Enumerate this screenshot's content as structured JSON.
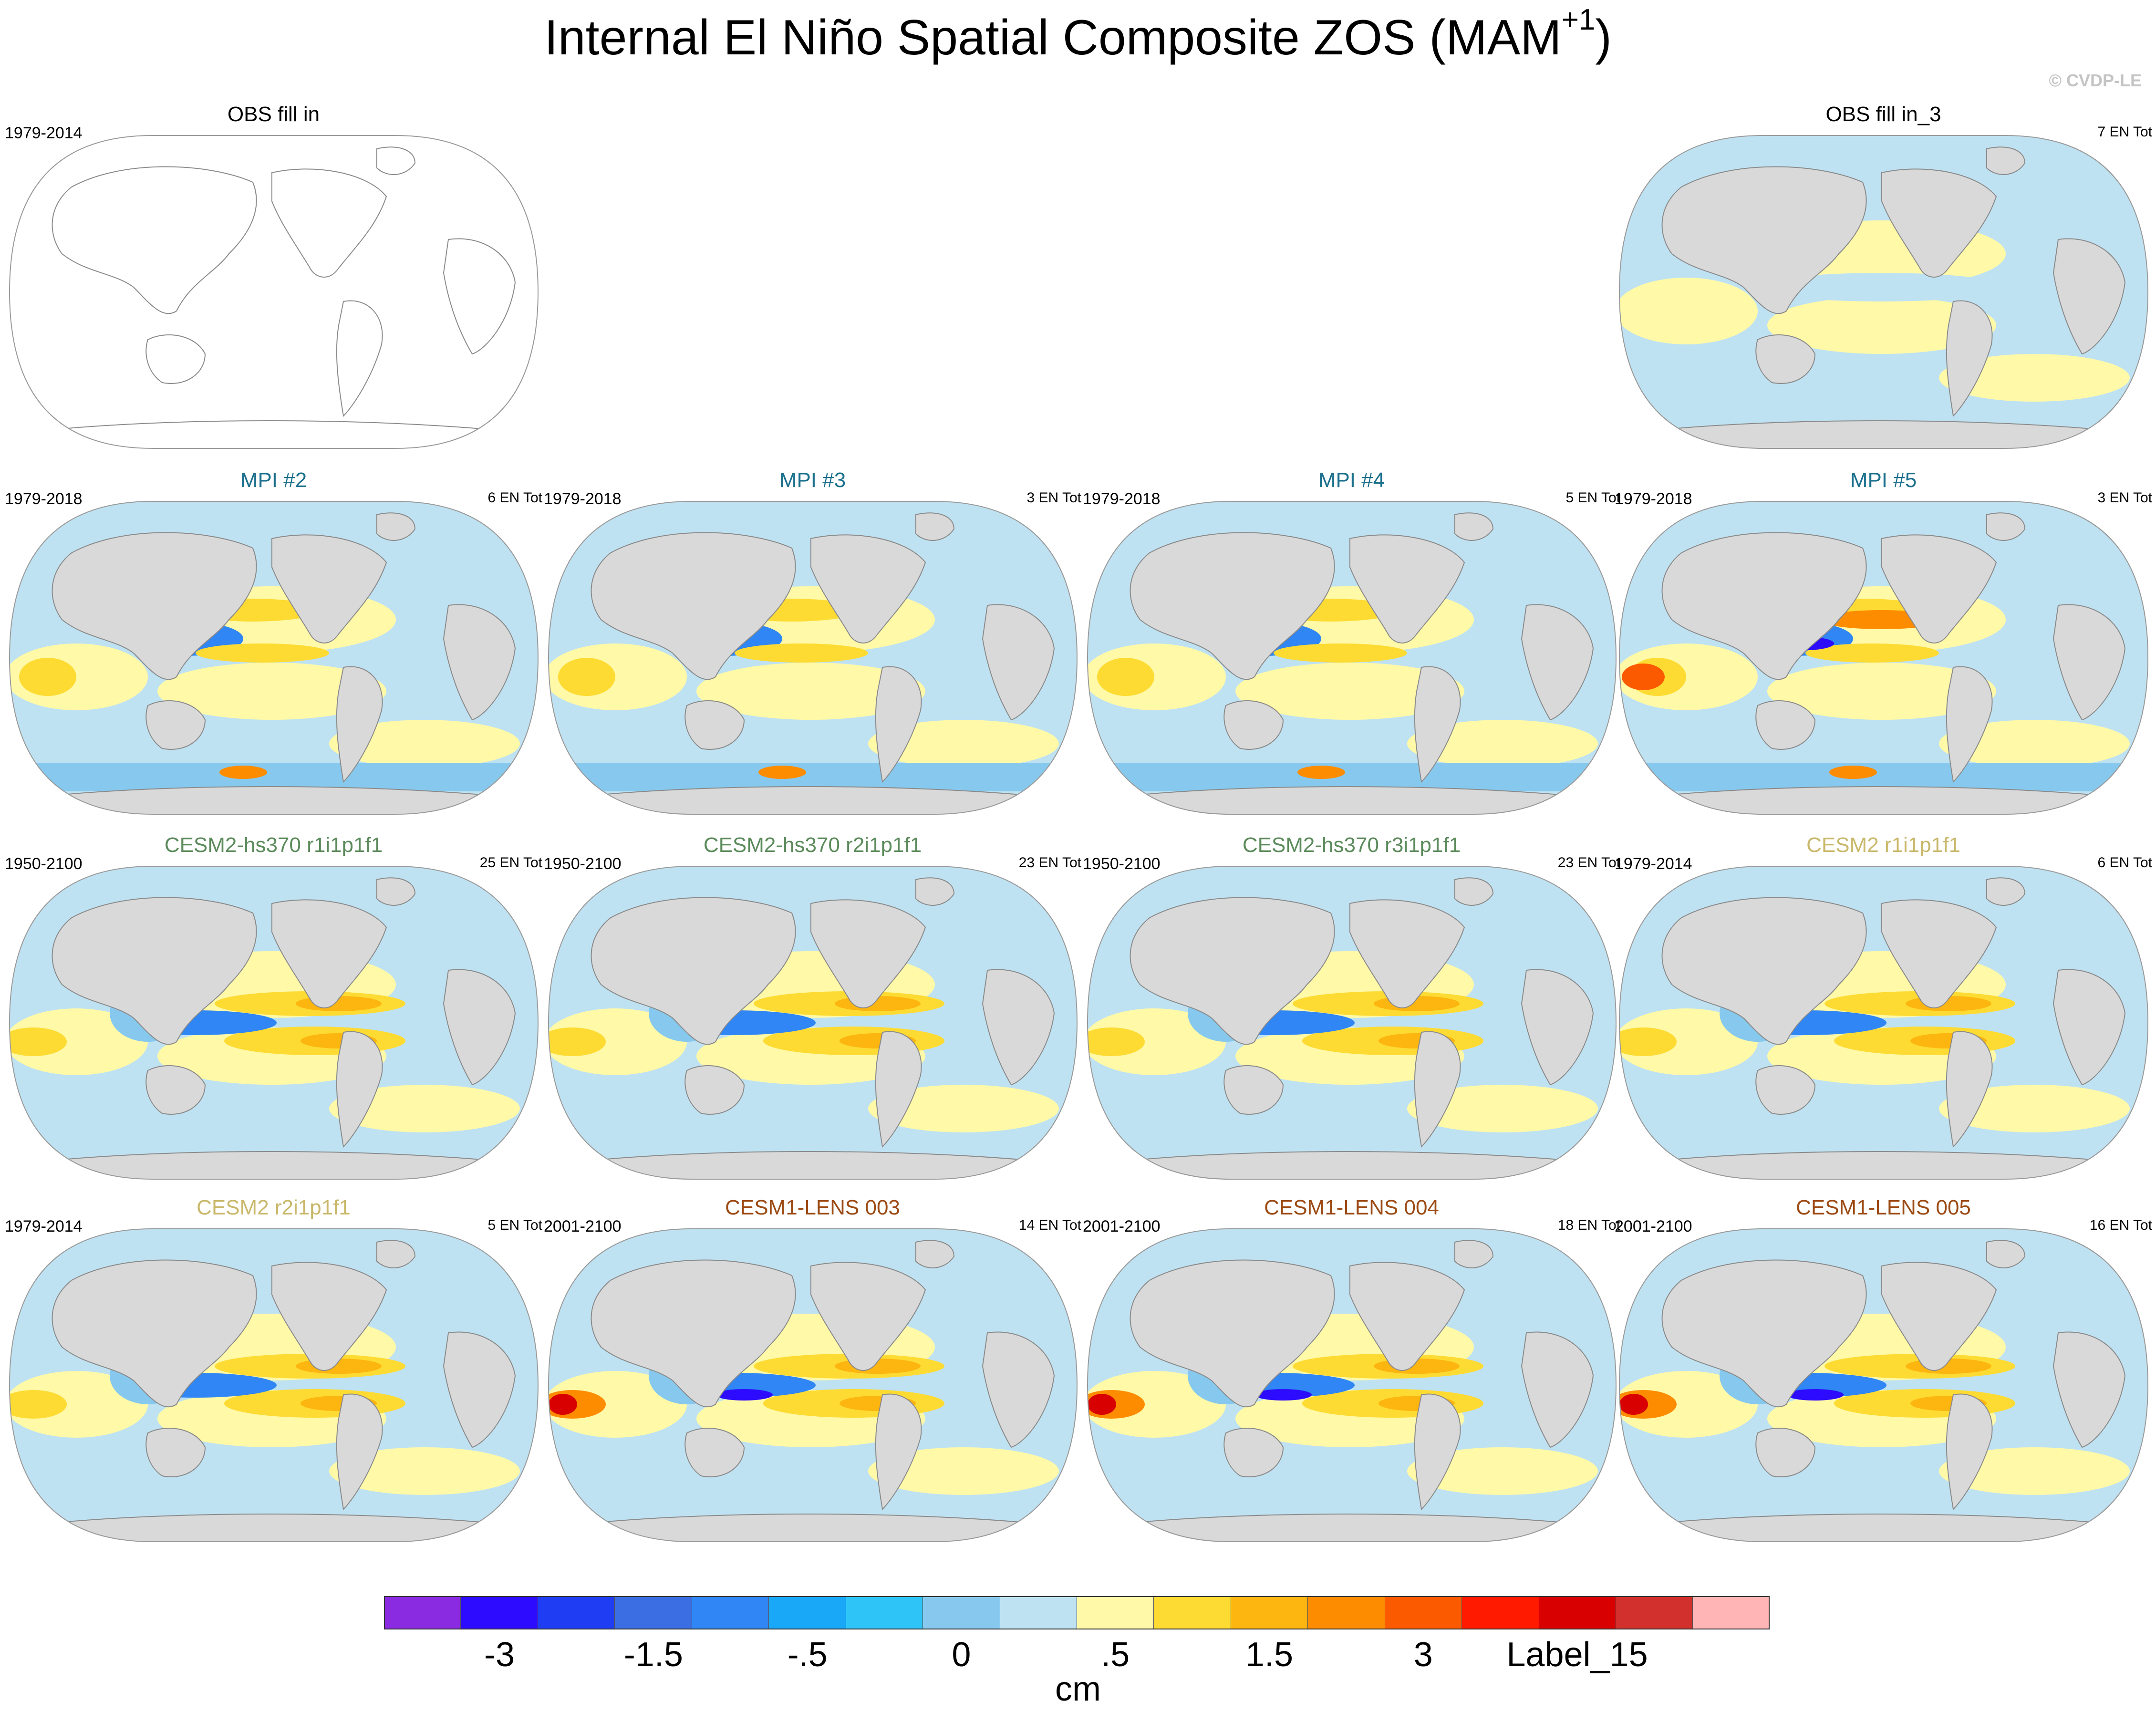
{
  "figure": {
    "title": "Internal El Niño Spatial Composite ZOS (MAM",
    "title_sup": "+1",
    "title_close": ")",
    "credit": "© CVDP-LE"
  },
  "panels": [
    {
      "title": "OBS fill in",
      "period": "1979-2014",
      "count": "",
      "title_color": "#000000",
      "fill": "none"
    },
    {
      "title": "OBS fill in_3",
      "period": "",
      "count": "7 EN Tot",
      "title_color": "#000000",
      "fill": "obs3"
    },
    {
      "title": "MPI #2",
      "period": "1979-2018",
      "count": "6 EN Tot",
      "title_color": "#1a6f8c",
      "fill": "mpi"
    },
    {
      "title": "MPI #3",
      "period": "1979-2018",
      "count": "3 EN Tot",
      "title_color": "#1a6f8c",
      "fill": "mpi"
    },
    {
      "title": "MPI #4",
      "period": "1979-2018",
      "count": "5 EN Tot",
      "title_color": "#1a6f8c",
      "fill": "mpi"
    },
    {
      "title": "MPI #5",
      "period": "1979-2018",
      "count": "3 EN Tot",
      "title_color": "#1a6f8c",
      "fill": "mpi-strong"
    },
    {
      "title": "CESM2-hs370 r1i1p1f1",
      "period": "1950-2100",
      "count": "25 EN Tot",
      "title_color": "#5b8a5b",
      "fill": "cesm"
    },
    {
      "title": "CESM2-hs370 r2i1p1f1",
      "period": "1950-2100",
      "count": "23 EN Tot",
      "title_color": "#5b8a5b",
      "fill": "cesm"
    },
    {
      "title": "CESM2-hs370 r3i1p1f1",
      "period": "1950-2100",
      "count": "23 EN Tot",
      "title_color": "#5b8a5b",
      "fill": "cesm"
    },
    {
      "title": "CESM2 r1i1p1f1",
      "period": "1979-2014",
      "count": "6 EN Tot",
      "title_color": "#c9b86a",
      "fill": "cesm"
    },
    {
      "title": "CESM2 r2i1p1f1",
      "period": "1979-2014",
      "count": "5 EN Tot",
      "title_color": "#c9b86a",
      "fill": "cesm"
    },
    {
      "title": "CESM1-LENS 003",
      "period": "2001-2100",
      "count": "14 EN Tot",
      "title_color": "#9c4a14",
      "fill": "lens"
    },
    {
      "title": "CESM1-LENS 004",
      "period": "2001-2100",
      "count": "18 EN Tot",
      "title_color": "#9c4a14",
      "fill": "lens"
    },
    {
      "title": "CESM1-LENS 005",
      "period": "2001-2100",
      "count": "16 EN Tot",
      "title_color": "#9c4a14",
      "fill": "lens"
    }
  ],
  "colorbar": {
    "colors": [
      "#8a2be2",
      "#2c0bff",
      "#1f3df2",
      "#3b6ee2",
      "#2f86f4",
      "#19a7f7",
      "#2ec4f8",
      "#87c9ee",
      "#bfe2f2",
      "#fff9a8",
      "#fedb33",
      "#fdb50f",
      "#fd8c00",
      "#fc5a00",
      "#ff1a00",
      "#d80000",
      "#d1302d",
      "#ffb5b5"
    ],
    "labels": [
      "-3",
      "-1.5",
      "-.5",
      "0",
      ".5",
      "1.5",
      "3",
      "Label_15"
    ],
    "label_index": [
      2,
      4,
      6,
      8,
      10,
      12,
      14,
      16
    ],
    "units": "cm"
  }
}
